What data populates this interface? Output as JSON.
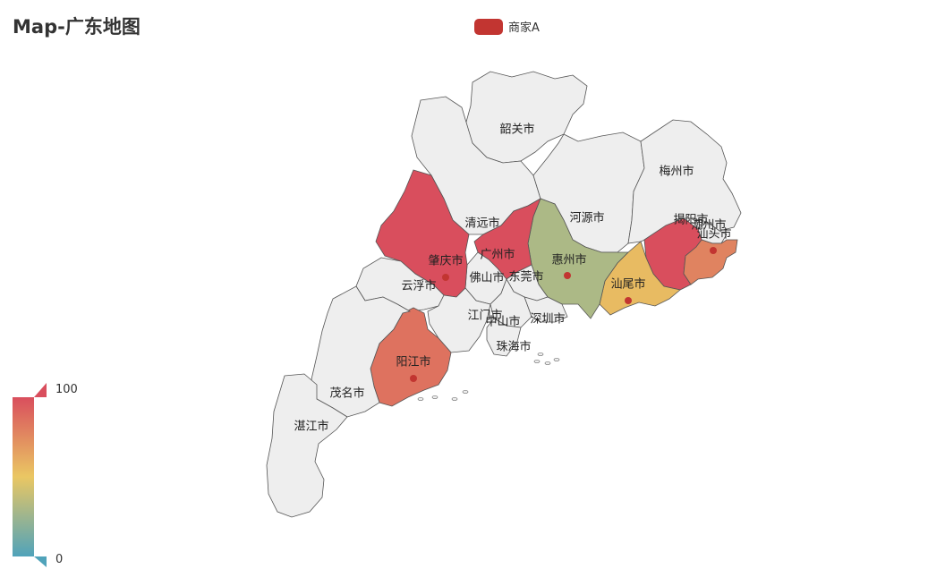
{
  "title": "Map-广东地图",
  "legend": {
    "label": "商家A",
    "color": "#c23531"
  },
  "visual_map": {
    "max_label": "100",
    "min_label": "0",
    "colors": [
      "#50a3ba",
      "#eac763",
      "#d94e5d"
    ]
  },
  "colors": {
    "default_fill": "#eeeeee",
    "marker": "#c23531"
  },
  "regions": [
    {
      "name": "韶关市",
      "value": null,
      "label": "韶关市"
    },
    {
      "name": "清远市",
      "value": null,
      "label": "清远市"
    },
    {
      "name": "河源市",
      "value": null,
      "label": "河源市"
    },
    {
      "name": "梅州市",
      "value": null,
      "label": "梅州市"
    },
    {
      "name": "潮州市",
      "value": null,
      "label": "潮州市"
    },
    {
      "name": "揭阳市",
      "value": 100,
      "label": "揭阳市"
    },
    {
      "name": "汕头市",
      "value": 78,
      "label": "汕头市"
    },
    {
      "name": "汕尾市",
      "value": 55,
      "label": "汕尾市"
    },
    {
      "name": "惠州市",
      "value": 30,
      "label": "惠州市"
    },
    {
      "name": "广州市",
      "value": 100,
      "label": "广州市"
    },
    {
      "name": "东莞市",
      "value": null,
      "label": "东莞市"
    },
    {
      "name": "深圳市",
      "value": null,
      "label": "深圳市"
    },
    {
      "name": "佛山市",
      "value": null,
      "label": "佛山市"
    },
    {
      "name": "肇庆市",
      "value": 100,
      "label": "肇庆市"
    },
    {
      "name": "云浮市",
      "value": null,
      "label": "云浮市"
    },
    {
      "name": "江门市",
      "value": null,
      "label": "江门市"
    },
    {
      "name": "中山市",
      "value": null,
      "label": "中山市"
    },
    {
      "name": "珠海市",
      "value": null,
      "label": "珠海市"
    },
    {
      "name": "阳江市",
      "value": 85,
      "label": "阳江市"
    },
    {
      "name": "茂名市",
      "value": null,
      "label": "茂名市"
    },
    {
      "name": "湛江市",
      "value": null,
      "label": "湛江市"
    }
  ]
}
